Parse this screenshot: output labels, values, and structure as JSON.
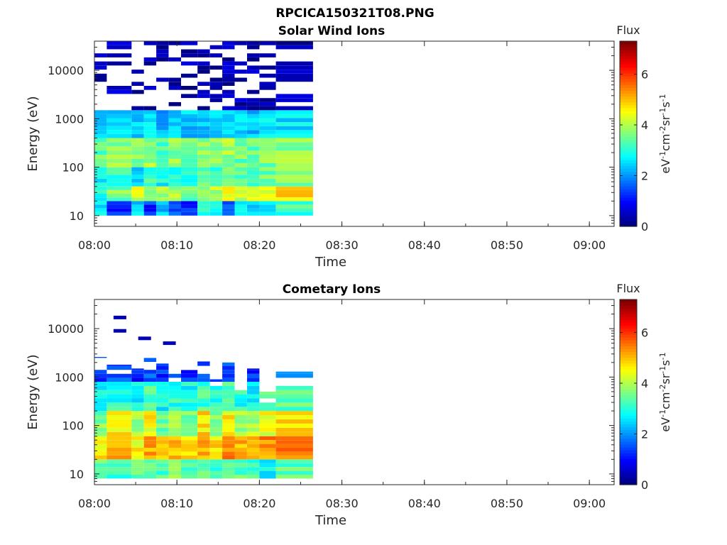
{
  "figure_title": "RPCICA150321T08.PNG",
  "colors": {
    "colormap": "jet",
    "axis": "#262626",
    "background": "#ffffff"
  },
  "chart_data": [
    {
      "type": "heatmap",
      "title": "Solar Wind Ions",
      "xlabel": "Time",
      "ylabel": "Energy (eV)",
      "yscale": "log",
      "ylim": [
        6,
        40000
      ],
      "xlim": [
        "08:00",
        "09:03"
      ],
      "xticks": [
        "08:00",
        "08:10",
        "08:20",
        "08:30",
        "08:40",
        "08:50",
        "09:00"
      ],
      "yticks": [
        "10",
        "100",
        "1000",
        "10000"
      ],
      "colorbar": {
        "label": "Flux",
        "unit": "eV-1cm-2sr-1s-1",
        "ticks": [
          "0",
          "2",
          "4",
          "6"
        ],
        "range": [
          0,
          7.3
        ]
      },
      "data_time_range": [
        "08:00",
        "08:26.5"
      ],
      "time_bins": [
        "08:00",
        "08:01.5",
        "08:04.5",
        "08:06",
        "08:07.5",
        "08:09",
        "08:10.5",
        "08:12.5",
        "08:14",
        "08:15.5",
        "08:17",
        "08:18.5",
        "08:20",
        "08:22"
      ],
      "energy_bands_eV": [
        {
          "band": "10-20",
          "flux": [
            2.6,
            1.2,
            2.4,
            1.3,
            2.4,
            1.6,
            1.2,
            3.0,
            2.6,
            1.5,
            2.6,
            2.6,
            2.5,
            3.2
          ]
        },
        {
          "band": "20-40",
          "flux": [
            3.0,
            3.6,
            4.2,
            3.8,
            3.9,
            4.0,
            3.6,
            3.8,
            4.0,
            4.6,
            4.3,
            4.2,
            4.5,
            4.8
          ]
        },
        {
          "band": "40-100",
          "flux": [
            2.8,
            3.0,
            2.5,
            3.2,
            2.8,
            3.0,
            2.9,
            3.4,
            3.2,
            3.6,
            3.2,
            3.3,
            3.5,
            3.6
          ]
        },
        {
          "band": "100-400",
          "flux": [
            3.4,
            3.8,
            3.6,
            3.9,
            3.4,
            3.7,
            3.5,
            3.8,
            3.6,
            3.9,
            3.5,
            3.4,
            3.6,
            3.8
          ]
        },
        {
          "band": "400-1500",
          "flux": [
            2.4,
            2.6,
            2.5,
            2.7,
            2.2,
            2.5,
            2.4,
            2.4,
            2.6,
            2.5,
            2.4,
            2.3,
            2.5,
            2.6
          ]
        },
        {
          "band": "1500-40000",
          "flux": [
            0.3,
            0.4,
            0.3,
            0.3,
            0.3,
            0.3,
            0.3,
            0.3,
            0.3,
            0.3,
            0.3,
            0.3,
            0.3,
            0.3
          ]
        }
      ]
    },
    {
      "type": "heatmap",
      "title": "Cometary Ions",
      "xlabel": "Time",
      "ylabel": "Energy (eV)",
      "yscale": "log",
      "ylim": [
        6,
        40000
      ],
      "xlim": [
        "08:00",
        "09:03"
      ],
      "xticks": [
        "08:00",
        "08:10",
        "08:20",
        "08:30",
        "08:40",
        "08:50",
        "09:00"
      ],
      "yticks": [
        "10",
        "100",
        "1000",
        "10000"
      ],
      "colorbar": {
        "label": "Flux",
        "unit": "eV-1cm-2sr-1s-1",
        "ticks": [
          "0",
          "2",
          "4",
          "6"
        ],
        "range": [
          0,
          7.3
        ]
      },
      "data_time_range": [
        "08:00",
        "08:26.5"
      ],
      "time_bins": [
        "08:00",
        "08:01.5",
        "08:04.5",
        "08:06",
        "08:07.5",
        "08:09",
        "08:10.5",
        "08:12.5",
        "08:14",
        "08:15.5",
        "08:17",
        "08:18.5",
        "08:20",
        "08:22"
      ],
      "max_energy_eV": [
        2600,
        1800,
        1500,
        2700,
        1900,
        1200,
        1400,
        2100,
        900,
        2000,
        600,
        1500,
        500,
        1300
      ],
      "energy_bands_eV": [
        {
          "band": "8-20",
          "flux": [
            3.4,
            3.2,
            3.4,
            3.4,
            3.2,
            3.6,
            3.2,
            3.4,
            3.2,
            3.3,
            3.4,
            3.3,
            2.6,
            3.4
          ]
        },
        {
          "band": "20-60",
          "flux": [
            4.6,
            5.0,
            4.6,
            5.2,
            4.8,
            5.0,
            4.8,
            5.2,
            4.7,
            5.6,
            5.0,
            5.0,
            5.4,
            5.6
          ]
        },
        {
          "band": "60-200",
          "flux": [
            3.6,
            4.6,
            3.8,
            4.6,
            3.6,
            4.2,
            3.6,
            4.8,
            3.8,
            4.6,
            3.8,
            4.0,
            4.4,
            4.8
          ]
        },
        {
          "band": "200-800",
          "flux": [
            2.8,
            3.0,
            2.8,
            3.2,
            2.8,
            3.0,
            2.8,
            3.2,
            3.0,
            3.2,
            3.0,
            2.8,
            3.2,
            3.4
          ]
        },
        {
          "band": "800-3000",
          "flux": [
            1.4,
            1.4,
            1.2,
            1.6,
            1.2,
            1.4,
            1.2,
            1.4,
            1.2,
            1.4,
            1.0,
            1.2,
            1.0,
            1.6
          ]
        }
      ],
      "high_energy_blips": [
        {
          "time": "08:03",
          "energy_eV": 17000,
          "flux": 0.4
        },
        {
          "time": "08:03",
          "energy_eV": 9000,
          "flux": 0.3
        },
        {
          "time": "08:06",
          "energy_eV": 6300,
          "flux": 0.4
        },
        {
          "time": "08:09",
          "energy_eV": 5000,
          "flux": 0.4
        }
      ]
    }
  ]
}
